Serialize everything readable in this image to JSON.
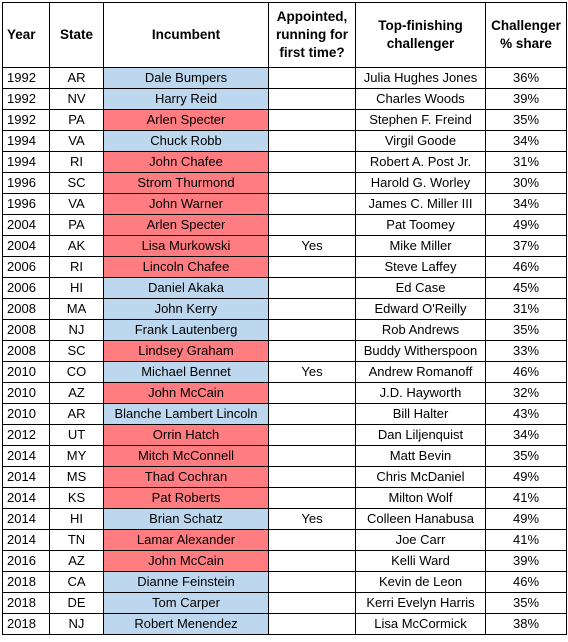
{
  "colors": {
    "democrat": "#bdd7ee",
    "republican": "#ff7c80"
  },
  "headers": {
    "year": "Year",
    "state": "State",
    "incumbent": "Incumbent",
    "appointed_line1": "Appointed,",
    "appointed_line2": "running for",
    "appointed_line3": "first time?",
    "challenger_line1": "Top-finishing",
    "challenger_line2": "challenger",
    "share_line1": "Challenger",
    "share_line2": "% share"
  },
  "rows": [
    {
      "year": "1992",
      "state": "AR",
      "incumbent": "Dale Bumpers",
      "party": "dem",
      "appointed": "",
      "challenger": "Julia Hughes Jones",
      "share": "36%"
    },
    {
      "year": "1992",
      "state": "NV",
      "incumbent": "Harry Reid",
      "party": "dem",
      "appointed": "",
      "challenger": "Charles Woods",
      "share": "39%"
    },
    {
      "year": "1992",
      "state": "PA",
      "incumbent": "Arlen Specter",
      "party": "rep",
      "appointed": "",
      "challenger": "Stephen F. Freind",
      "share": "35%"
    },
    {
      "year": "1994",
      "state": "VA",
      "incumbent": "Chuck Robb",
      "party": "dem",
      "appointed": "",
      "challenger": "Virgil Goode",
      "share": "34%"
    },
    {
      "year": "1994",
      "state": "RI",
      "incumbent": "John Chafee",
      "party": "rep",
      "appointed": "",
      "challenger": "Robert A. Post Jr.",
      "share": "31%"
    },
    {
      "year": "1996",
      "state": "SC",
      "incumbent": "Strom Thurmond",
      "party": "rep",
      "appointed": "",
      "challenger": "Harold G. Worley",
      "share": "30%"
    },
    {
      "year": "1996",
      "state": "VA",
      "incumbent": "John Warner",
      "party": "rep",
      "appointed": "",
      "challenger": "James C. Miller III",
      "share": "34%"
    },
    {
      "year": "2004",
      "state": "PA",
      "incumbent": "Arlen Specter",
      "party": "rep",
      "appointed": "",
      "challenger": "Pat Toomey",
      "share": "49%"
    },
    {
      "year": "2004",
      "state": "AK",
      "incumbent": "Lisa Murkowski",
      "party": "rep",
      "appointed": "Yes",
      "challenger": "Mike Miller",
      "share": "37%"
    },
    {
      "year": "2006",
      "state": "RI",
      "incumbent": "Lincoln Chafee",
      "party": "rep",
      "appointed": "",
      "challenger": "Steve Laffey",
      "share": "46%"
    },
    {
      "year": "2006",
      "state": "HI",
      "incumbent": "Daniel Akaka",
      "party": "dem",
      "appointed": "",
      "challenger": "Ed Case",
      "share": "45%"
    },
    {
      "year": "2008",
      "state": "MA",
      "incumbent": "John Kerry",
      "party": "dem",
      "appointed": "",
      "challenger": "Edward O'Reilly",
      "share": "31%"
    },
    {
      "year": "2008",
      "state": "NJ",
      "incumbent": "Frank Lautenberg",
      "party": "dem",
      "appointed": "",
      "challenger": "Rob Andrews",
      "share": "35%"
    },
    {
      "year": "2008",
      "state": "SC",
      "incumbent": "Lindsey Graham",
      "party": "rep",
      "appointed": "",
      "challenger": "Buddy Witherspoon",
      "share": "33%"
    },
    {
      "year": "2010",
      "state": "CO",
      "incumbent": "Michael Bennet",
      "party": "dem",
      "appointed": "Yes",
      "challenger": "Andrew Romanoff",
      "share": "46%"
    },
    {
      "year": "2010",
      "state": "AZ",
      "incumbent": "John McCain",
      "party": "rep",
      "appointed": "",
      "challenger": "J.D. Hayworth",
      "share": "32%"
    },
    {
      "year": "2010",
      "state": "AR",
      "incumbent": "Blanche Lambert Lincoln",
      "party": "dem",
      "appointed": "",
      "challenger": "Bill Halter",
      "share": "43%"
    },
    {
      "year": "2012",
      "state": "UT",
      "incumbent": "Orrin Hatch",
      "party": "rep",
      "appointed": "",
      "challenger": "Dan Liljenquist",
      "share": "34%"
    },
    {
      "year": "2014",
      "state": "MY",
      "incumbent": "Mitch McConnell",
      "party": "rep",
      "appointed": "",
      "challenger": "Matt Bevin",
      "share": "35%"
    },
    {
      "year": "2014",
      "state": "MS",
      "incumbent": "Thad Cochran",
      "party": "rep",
      "appointed": "",
      "challenger": "Chris McDaniel",
      "share": "49%"
    },
    {
      "year": "2014",
      "state": "KS",
      "incumbent": "Pat Roberts",
      "party": "rep",
      "appointed": "",
      "challenger": "Milton Wolf",
      "share": "41%"
    },
    {
      "year": "2014",
      "state": "HI",
      "incumbent": "Brian Schatz",
      "party": "dem",
      "appointed": "Yes",
      "challenger": "Colleen Hanabusa",
      "share": "49%"
    },
    {
      "year": "2014",
      "state": "TN",
      "incumbent": "Lamar Alexander",
      "party": "rep",
      "appointed": "",
      "challenger": "Joe Carr",
      "share": "41%"
    },
    {
      "year": "2016",
      "state": "AZ",
      "incumbent": "John McCain",
      "party": "rep",
      "appointed": "",
      "challenger": "Kelli Ward",
      "share": "39%"
    },
    {
      "year": "2018",
      "state": "CA",
      "incumbent": "Dianne Feinstein",
      "party": "dem",
      "appointed": "",
      "challenger": "Kevin de Leon",
      "share": "46%"
    },
    {
      "year": "2018",
      "state": "DE",
      "incumbent": "Tom Carper",
      "party": "dem",
      "appointed": "",
      "challenger": "Kerri Evelyn Harris",
      "share": "35%"
    },
    {
      "year": "2018",
      "state": "NJ",
      "incumbent": "Robert Menendez",
      "party": "dem",
      "appointed": "",
      "challenger": "Lisa McCormick",
      "share": "38%"
    }
  ]
}
